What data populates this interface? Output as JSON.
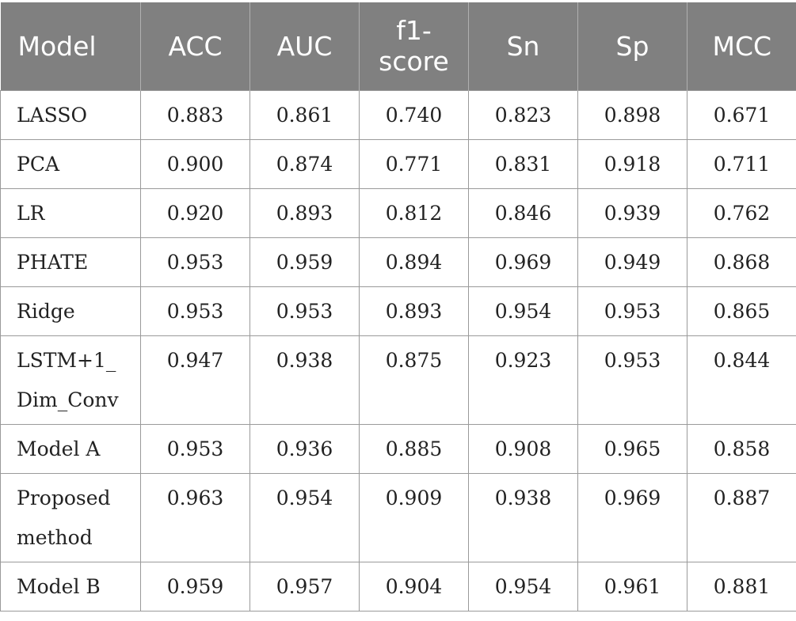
{
  "table": {
    "headers": [
      "Model",
      "ACC",
      "AUC",
      "f1-\nscore",
      "Sn",
      "Sp",
      "MCC"
    ],
    "rows": [
      {
        "model": "LASSO",
        "values": [
          "0.883",
          "0.861",
          "0.740",
          "0.823",
          "0.898",
          "0.671"
        ]
      },
      {
        "model": "PCA",
        "values": [
          "0.900",
          "0.874",
          "0.771",
          "0.831",
          "0.918",
          "0.711"
        ]
      },
      {
        "model": "LR",
        "values": [
          "0.920",
          "0.893",
          "0.812",
          "0.846",
          "0.939",
          "0.762"
        ]
      },
      {
        "model": "PHATE",
        "values": [
          "0.953",
          "0.959",
          "0.894",
          "0.969",
          "0.949",
          "0.868"
        ]
      },
      {
        "model": "Ridge",
        "values": [
          "0.953",
          "0.953",
          "0.893",
          "0.954",
          "0.953",
          "0.865"
        ]
      },
      {
        "model": "LSTM+1_\nDim_Conv",
        "values": [
          "0.947",
          "0.938",
          "0.875",
          "0.923",
          "0.953",
          "0.844"
        ]
      },
      {
        "model": "Model A",
        "values": [
          "0.953",
          "0.936",
          "0.885",
          "0.908",
          "0.965",
          "0.858"
        ]
      },
      {
        "model": "Proposed\nmethod",
        "values": [
          "0.963",
          "0.954",
          "0.909",
          "0.938",
          "0.969",
          "0.887"
        ]
      },
      {
        "model": "Model B",
        "values": [
          "0.959",
          "0.957",
          "0.904",
          "0.954",
          "0.961",
          "0.881"
        ]
      }
    ]
  }
}
